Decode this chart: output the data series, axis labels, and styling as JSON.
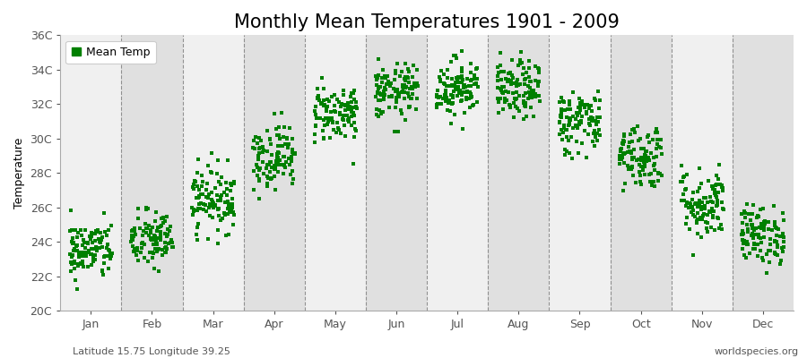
{
  "title": "Monthly Mean Temperatures 1901 - 2009",
  "ylabel": "Temperature",
  "xlabel_bottom_left": "Latitude 15.75 Longitude 39.25",
  "xlabel_bottom_right": "worldspecies.org",
  "legend_label": "Mean Temp",
  "ylim": [
    20,
    36
  ],
  "yticks": [
    20,
    22,
    24,
    26,
    28,
    30,
    32,
    34,
    36
  ],
  "ytick_labels": [
    "20C",
    "22C",
    "24C",
    "26C",
    "28C",
    "30C",
    "32C",
    "34C",
    "36C"
  ],
  "months": [
    "Jan",
    "Feb",
    "Mar",
    "Apr",
    "May",
    "Jun",
    "Jul",
    "Aug",
    "Sep",
    "Oct",
    "Nov",
    "Dec"
  ],
  "dot_color": "#008000",
  "bg_color_light": "#f0f0f0",
  "bg_color_dark": "#e0e0e0",
  "monthly_mean_temps": [
    23.5,
    24.1,
    26.5,
    29.0,
    31.5,
    32.7,
    33.0,
    32.8,
    31.0,
    29.0,
    26.2,
    24.4
  ],
  "monthly_std": [
    0.85,
    0.85,
    0.95,
    0.95,
    0.85,
    0.8,
    0.85,
    0.85,
    0.95,
    0.95,
    1.05,
    0.85
  ],
  "n_years": 109,
  "seed": 42,
  "title_fontsize": 15,
  "axis_label_fontsize": 9,
  "tick_fontsize": 9,
  "annotation_fontsize": 8,
  "marker_size": 9
}
